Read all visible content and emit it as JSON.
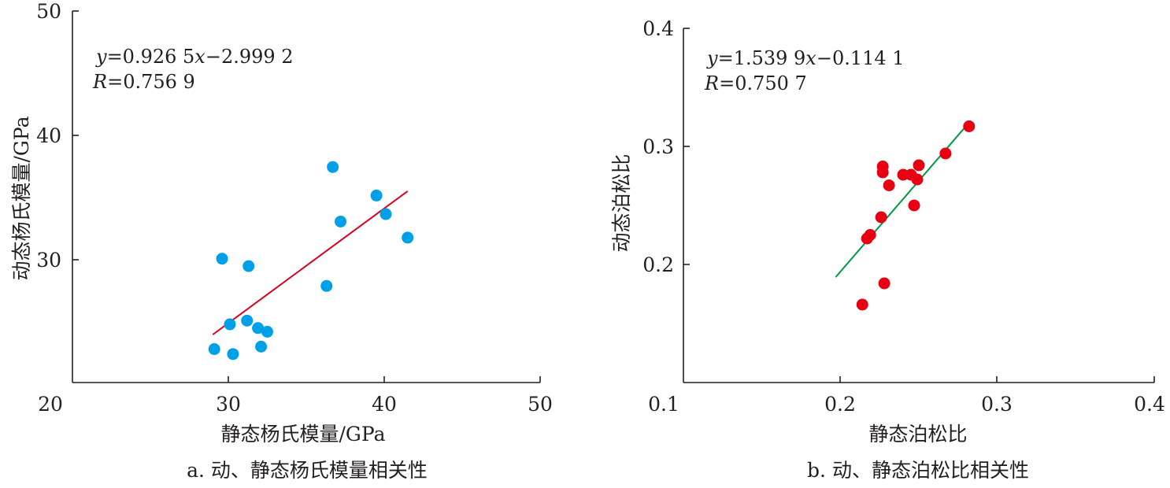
{
  "chart_data": [
    {
      "type": "scatter",
      "xlabel": "静态杨氏模量/GPa",
      "ylabel": "动态杨氏模量/GPa",
      "xlim": [
        20,
        50
      ],
      "ylim": [
        20,
        50
      ],
      "x_ticks": [
        "20",
        "30",
        "40",
        "50"
      ],
      "y_ticks": [
        "30",
        "40",
        "50"
      ],
      "series": [
        {
          "points": [
            [
              29.1,
              22.7
            ],
            [
              30.3,
              22.3
            ],
            [
              30.1,
              24.7
            ],
            [
              29.6,
              30.0
            ],
            [
              31.2,
              25.0
            ],
            [
              31.3,
              29.4
            ],
            [
              31.9,
              24.4
            ],
            [
              32.1,
              22.9
            ],
            [
              32.5,
              24.1
            ],
            [
              36.3,
              27.8
            ],
            [
              36.7,
              37.4
            ],
            [
              37.2,
              33.0
            ],
            [
              39.5,
              35.1
            ],
            [
              40.1,
              33.6
            ],
            [
              41.5,
              31.7
            ]
          ]
        }
      ],
      "fit": {
        "x_range": [
          29.0,
          41.5
        ]
      },
      "equation": {
        "y": "y",
        "rest": "=0.926 5",
        "x": "x",
        "rest2": "−2.999 2"
      },
      "r": {
        "r": "R",
        "rest": "=0.756 9"
      },
      "caption": "a. 动、静态杨氏模量相关性",
      "colors": {
        "points": "#00a0e9",
        "fit": "#d7001f"
      }
    },
    {
      "type": "scatter",
      "xlabel": "静态泊松比",
      "ylabel": "动态泊松比",
      "xlim": [
        0.1,
        0.4
      ],
      "ylim": [
        0.1,
        0.4
      ],
      "x_ticks": [
        "0.1",
        "0.2",
        "0.3",
        "0.4"
      ],
      "y_ticks": [
        "0.2",
        "0.3",
        "0.4"
      ],
      "series": [
        {
          "points": [
            [
              0.214,
              0.166
            ],
            [
              0.217,
              0.222
            ],
            [
              0.219,
              0.225
            ],
            [
              0.226,
              0.24
            ],
            [
              0.227,
              0.283
            ],
            [
              0.227,
              0.278
            ],
            [
              0.228,
              0.184
            ],
            [
              0.231,
              0.267
            ],
            [
              0.24,
              0.276
            ],
            [
              0.245,
              0.276
            ],
            [
              0.247,
              0.25
            ],
            [
              0.249,
              0.272
            ],
            [
              0.25,
              0.284
            ],
            [
              0.267,
              0.294
            ],
            [
              0.282,
              0.317
            ]
          ]
        }
      ],
      "fit": {
        "x_range": [
          0.197,
          0.283
        ]
      },
      "equation": {
        "y": "y",
        "rest": "=1.539 9",
        "x": "x",
        "rest2": "−0.114 1"
      },
      "r": {
        "r": "R",
        "rest": "=0.750 7"
      },
      "caption": "b. 动、静态泊松比相关性",
      "colors": {
        "points": "#e60012",
        "fit": "#009944"
      }
    }
  ]
}
